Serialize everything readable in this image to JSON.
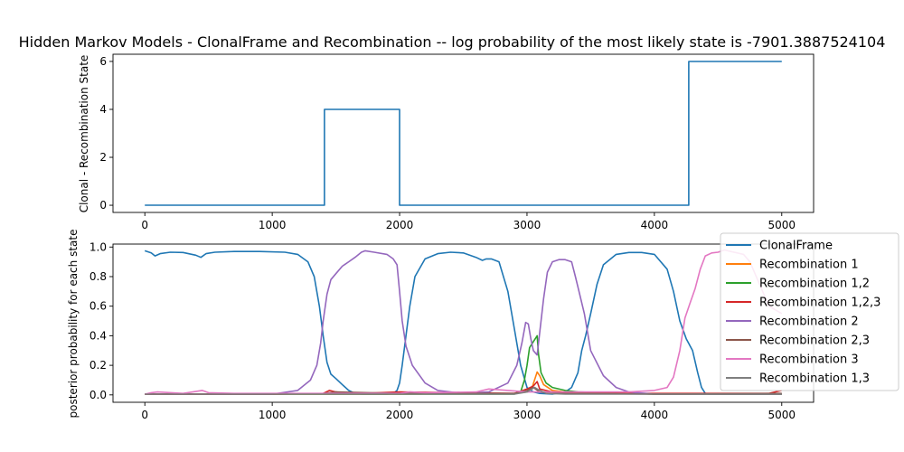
{
  "chart_data": [
    {
      "type": "line",
      "title": "Hidden Markov Models - ClonalFrame and Recombination -- log probability of the most likely state is  -7901.3887524104",
      "xlabel": "",
      "ylabel": "Clonal - Recombination State",
      "xlim": [
        -250,
        5250
      ],
      "ylim": [
        -0.3,
        6.3
      ],
      "xticks": [
        0,
        1000,
        2000,
        3000,
        4000,
        5000
      ],
      "yticks": [
        0,
        2,
        4,
        6
      ],
      "grid": false,
      "step": true,
      "series": [
        {
          "color": "#1f77b4",
          "x": [
            0,
            1410,
            1410,
            2000,
            2000,
            4270,
            4270,
            5000
          ],
          "y": [
            0,
            0,
            4,
            4,
            0,
            0,
            6,
            6
          ]
        }
      ]
    },
    {
      "type": "line",
      "title": "",
      "xlabel": "",
      "ylabel": "posterior probability for each state",
      "xlim": [
        -250,
        5250
      ],
      "ylim": [
        -0.05,
        1.02
      ],
      "xticks": [
        0,
        1000,
        2000,
        3000,
        4000,
        5000
      ],
      "yticks": [
        0.0,
        0.2,
        0.4,
        0.6,
        0.8,
        1.0
      ],
      "yticklabels": [
        "0.0",
        "0.2",
        "0.4",
        "0.6",
        "0.8",
        "1.0"
      ],
      "grid": false,
      "legend": {
        "position": "right",
        "entries": [
          "ClonalFrame",
          "Recombination 1",
          "Recombination 1,2",
          "Recombination 1,2,3",
          "Recombination 2",
          "Recombination 2,3",
          "Recombination 3",
          "Recombination 1,3"
        ]
      },
      "series": [
        {
          "name": "ClonalFrame",
          "color": "#1f77b4",
          "x": [
            0,
            50,
            80,
            120,
            200,
            300,
            400,
            440,
            480,
            550,
            700,
            900,
            1100,
            1200,
            1280,
            1330,
            1370,
            1400,
            1430,
            1460,
            1500,
            1550,
            1600,
            1650,
            1700,
            1800,
            1900,
            1950,
            1980,
            2000,
            2020,
            2050,
            2080,
            2120,
            2200,
            2300,
            2400,
            2500,
            2600,
            2650,
            2680,
            2720,
            2780,
            2850,
            2900,
            2950,
            3000,
            3050,
            3100,
            3200,
            3300,
            3350,
            3400,
            3430,
            3460,
            3500,
            3550,
            3600,
            3700,
            3800,
            3900,
            4000,
            4100,
            4150,
            4200,
            4250,
            4300,
            4340,
            4370,
            4400,
            4430,
            4450,
            4500,
            4600,
            4700,
            4800,
            4900,
            5000
          ],
          "y": [
            0.975,
            0.96,
            0.94,
            0.955,
            0.965,
            0.963,
            0.945,
            0.93,
            0.955,
            0.965,
            0.97,
            0.97,
            0.965,
            0.95,
            0.9,
            0.8,
            0.6,
            0.4,
            0.22,
            0.14,
            0.11,
            0.07,
            0.03,
            0.01,
            0.005,
            0.005,
            0.005,
            0.01,
            0.03,
            0.08,
            0.2,
            0.4,
            0.6,
            0.8,
            0.92,
            0.955,
            0.965,
            0.96,
            0.93,
            0.91,
            0.92,
            0.92,
            0.9,
            0.7,
            0.45,
            0.2,
            0.05,
            0.02,
            0.01,
            0.005,
            0.02,
            0.05,
            0.15,
            0.3,
            0.4,
            0.55,
            0.75,
            0.88,
            0.95,
            0.963,
            0.963,
            0.95,
            0.85,
            0.7,
            0.5,
            0.38,
            0.3,
            0.15,
            0.05,
            0.01,
            0.005,
            0.005,
            0.005,
            0.005,
            0.005,
            0.005,
            0.005,
            0.005
          ]
        },
        {
          "name": "Recombination 1",
          "color": "#ff7f0e",
          "x": [
            0,
            1000,
            2000,
            2900,
            3000,
            3040,
            3080,
            3100,
            3130,
            3200,
            3300,
            4000,
            5000
          ],
          "y": [
            0.005,
            0.005,
            0.005,
            0.01,
            0.02,
            0.05,
            0.155,
            0.13,
            0.07,
            0.03,
            0.02,
            0.005,
            0.005
          ]
        },
        {
          "name": "Recombination 1,2",
          "color": "#2ca02c",
          "x": [
            0,
            1000,
            2000,
            2900,
            2950,
            2980,
            3000,
            3020,
            3050,
            3080,
            3090,
            3110,
            3150,
            3200,
            3300,
            3400,
            4000,
            5000
          ],
          "y": [
            0.005,
            0.005,
            0.005,
            0.005,
            0.02,
            0.1,
            0.2,
            0.32,
            0.36,
            0.4,
            0.28,
            0.15,
            0.08,
            0.05,
            0.03,
            0.02,
            0.005,
            0.005
          ]
        },
        {
          "name": "Recombination 1,2,3",
          "color": "#d62728",
          "x": [
            0,
            1000,
            1400,
            1450,
            1500,
            1600,
            1700,
            2000,
            2900,
            3000,
            3050,
            3080,
            3100,
            3200,
            3400,
            4000,
            4500,
            4900,
            5000
          ],
          "y": [
            0.005,
            0.005,
            0.01,
            0.03,
            0.02,
            0.01,
            0.01,
            0.02,
            0.01,
            0.04,
            0.06,
            0.09,
            0.04,
            0.02,
            0.01,
            0.01,
            0.01,
            0.01,
            0.03
          ]
        },
        {
          "name": "Recombination 2",
          "color": "#9467bd",
          "x": [
            0,
            500,
            1000,
            1200,
            1300,
            1350,
            1380,
            1400,
            1430,
            1460,
            1500,
            1550,
            1600,
            1650,
            1700,
            1730,
            1800,
            1900,
            1950,
            1980,
            2000,
            2020,
            2050,
            2100,
            2200,
            2300,
            2500,
            2700,
            2850,
            2920,
            2960,
            2990,
            3010,
            3030,
            3050,
            3080,
            3100,
            3130,
            3160,
            3200,
            3250,
            3300,
            3350,
            3380,
            3400,
            3450,
            3500,
            3600,
            3700,
            3800,
            4000,
            4200,
            4300,
            4400,
            4500,
            5000
          ],
          "y": [
            0.005,
            0.005,
            0.005,
            0.03,
            0.1,
            0.2,
            0.35,
            0.5,
            0.68,
            0.78,
            0.82,
            0.87,
            0.9,
            0.93,
            0.965,
            0.975,
            0.965,
            0.95,
            0.92,
            0.88,
            0.7,
            0.5,
            0.33,
            0.2,
            0.08,
            0.03,
            0.01,
            0.02,
            0.08,
            0.2,
            0.35,
            0.49,
            0.48,
            0.38,
            0.3,
            0.27,
            0.42,
            0.65,
            0.83,
            0.9,
            0.915,
            0.915,
            0.9,
            0.8,
            0.73,
            0.55,
            0.3,
            0.13,
            0.05,
            0.02,
            0.005,
            0.005,
            0.005,
            0.005,
            0.005,
            0.005
          ]
        },
        {
          "name": "Recombination 2,3",
          "color": "#8c564b",
          "x": [
            0,
            1000,
            1400,
            1500,
            2000,
            2900,
            3000,
            3050,
            3100,
            3200,
            4000,
            5000
          ],
          "y": [
            0.005,
            0.005,
            0.01,
            0.02,
            0.01,
            0.01,
            0.03,
            0.05,
            0.02,
            0.01,
            0.005,
            0.01
          ]
        },
        {
          "name": "Recombination 3",
          "color": "#e377c2",
          "x": [
            0,
            50,
            100,
            300,
            450,
            500,
            700,
            1000,
            1300,
            1500,
            2000,
            2080,
            2200,
            2600,
            2700,
            3000,
            3500,
            3800,
            4000,
            4100,
            4150,
            4200,
            4240,
            4280,
            4320,
            4360,
            4400,
            4450,
            4500,
            4550,
            4600,
            4700,
            4750,
            4800,
            4850,
            4900,
            5000
          ],
          "y": [
            0.005,
            0.015,
            0.02,
            0.01,
            0.03,
            0.015,
            0.01,
            0.01,
            0.01,
            0.01,
            0.01,
            0.02,
            0.015,
            0.02,
            0.04,
            0.02,
            0.02,
            0.02,
            0.03,
            0.05,
            0.12,
            0.3,
            0.52,
            0.62,
            0.72,
            0.85,
            0.94,
            0.96,
            0.965,
            0.98,
            0.97,
            0.95,
            0.9,
            0.8,
            0.7,
            0.6,
            0.55
          ]
        },
        {
          "name": "Recombination 1,3",
          "color": "#7f7f7f",
          "x": [
            0,
            1000,
            2000,
            2900,
            3000,
            3060,
            3100,
            3150,
            3300,
            4000,
            5000
          ],
          "y": [
            0.005,
            0.005,
            0.005,
            0.005,
            0.02,
            0.05,
            0.03,
            0.01,
            0.005,
            0.005,
            0.005
          ]
        }
      ]
    }
  ]
}
